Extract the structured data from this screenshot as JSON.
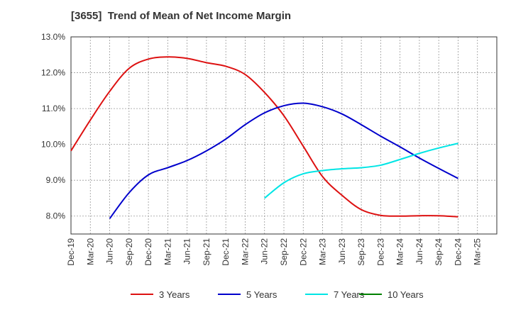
{
  "chart_data": {
    "type": "line",
    "title": "[3655]  Trend of Mean of Net Income Margin",
    "xlabel": "",
    "ylabel": "",
    "ylim": [
      7.5,
      13.0
    ],
    "y_ticks": [
      "8.0%",
      "9.0%",
      "10.0%",
      "11.0%",
      "12.0%",
      "13.0%"
    ],
    "y_tick_values": [
      8.0,
      9.0,
      10.0,
      11.0,
      12.0,
      13.0
    ],
    "x_ticks": [
      "Dec-19",
      "Mar-20",
      "Jun-20",
      "Sep-20",
      "Dec-20",
      "Mar-21",
      "Jun-21",
      "Sep-21",
      "Dec-21",
      "Mar-22",
      "Jun-22",
      "Sep-22",
      "Dec-22",
      "Mar-23",
      "Jun-23",
      "Sep-23",
      "Dec-23",
      "Mar-24",
      "Jun-24",
      "Sep-24",
      "Dec-24",
      "Mar-25"
    ],
    "grid": true,
    "legend_position": "bottom",
    "series": [
      {
        "name": "3 Years",
        "color": "#dd1111",
        "start_index": 0,
        "values": [
          9.82,
          10.68,
          11.48,
          12.12,
          12.38,
          12.44,
          12.4,
          12.28,
          12.18,
          11.95,
          11.45,
          10.8,
          9.95,
          9.1,
          8.58,
          8.18,
          8.02,
          8.0,
          8.01,
          8.01,
          7.98
        ]
      },
      {
        "name": "5 Years",
        "color": "#0000cc",
        "start_index": 2,
        "values": [
          7.93,
          8.65,
          9.15,
          9.35,
          9.55,
          9.82,
          10.15,
          10.55,
          10.88,
          11.08,
          11.15,
          11.05,
          10.85,
          10.55,
          10.23,
          9.93,
          9.62,
          9.33,
          9.05
        ]
      },
      {
        "name": "7 Years",
        "color": "#00e5e5",
        "start_index": 10,
        "values": [
          8.5,
          8.93,
          9.18,
          9.27,
          9.32,
          9.35,
          9.42,
          9.58,
          9.75,
          9.9,
          10.03
        ]
      },
      {
        "name": "10 Years",
        "color": "#008000",
        "start_index": 0,
        "values": []
      }
    ]
  }
}
